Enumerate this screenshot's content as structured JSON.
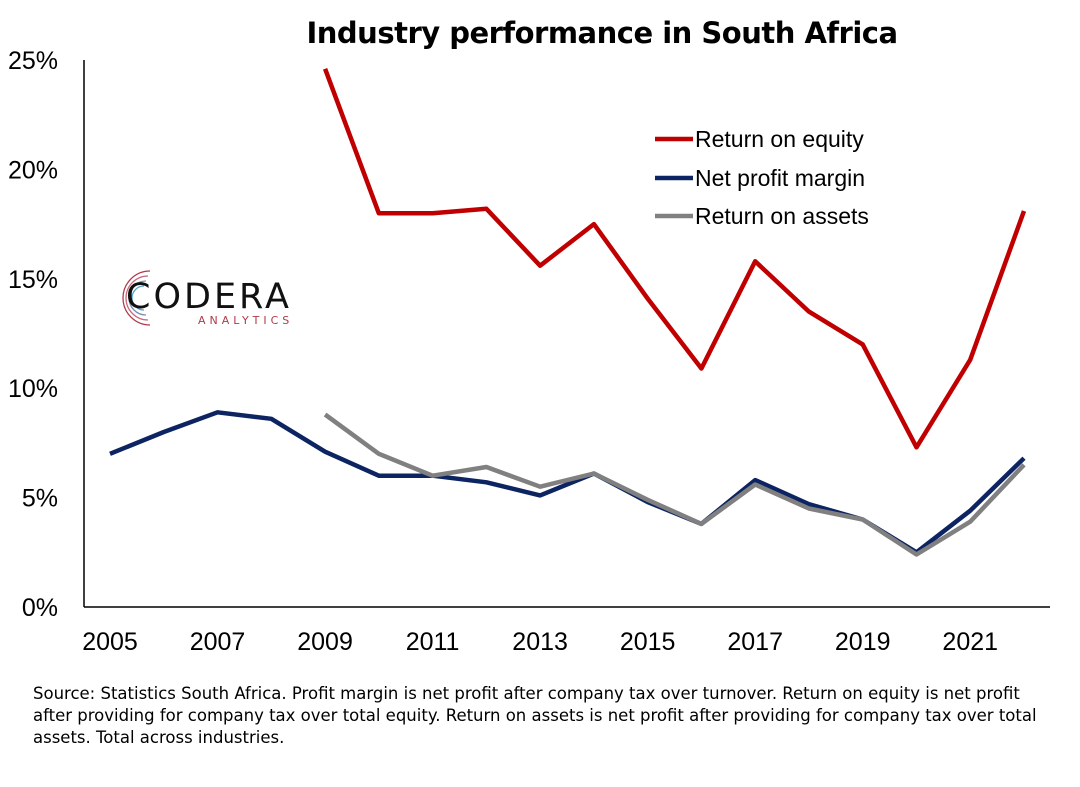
{
  "chart_data": {
    "type": "line",
    "title": "Industry performance in South Africa",
    "x": [
      2005,
      2006,
      2007,
      2008,
      2009,
      2010,
      2011,
      2012,
      2013,
      2014,
      2015,
      2016,
      2017,
      2018,
      2019,
      2020,
      2021,
      2022
    ],
    "x_tick_labels": [
      "2005",
      "2007",
      "2009",
      "2011",
      "2013",
      "2015",
      "2017",
      "2019",
      "2021"
    ],
    "y_tick_labels": [
      "0%",
      "5%",
      "10%",
      "15%",
      "20%",
      "25%"
    ],
    "ylim": [
      0,
      25
    ],
    "grid": false,
    "legend_position": "top-right",
    "series": [
      {
        "name": "Return on equity",
        "color": "#c00000",
        "values": [
          null,
          null,
          null,
          null,
          24.6,
          18.0,
          18.0,
          18.2,
          15.6,
          17.5,
          14.1,
          10.9,
          15.8,
          13.5,
          12.0,
          7.3,
          11.3,
          18.1
        ]
      },
      {
        "name": "Net profit margin",
        "color": "#0d2463",
        "values": [
          7.0,
          8.0,
          8.9,
          8.6,
          7.1,
          6.0,
          6.0,
          5.7,
          5.1,
          6.1,
          4.8,
          3.8,
          5.8,
          4.7,
          4.0,
          2.5,
          4.4,
          6.8
        ]
      },
      {
        "name": "Return on assets",
        "color": "#808080",
        "values": [
          null,
          null,
          null,
          null,
          8.8,
          7.0,
          6.0,
          6.4,
          5.5,
          6.1,
          4.9,
          3.8,
          5.6,
          4.5,
          4.0,
          2.4,
          3.9,
          6.5
        ]
      }
    ]
  },
  "logo": {
    "word": "CODERA",
    "sub": "ANALYTICS"
  },
  "source_note": "Source: Statistics South Africa. Profit margin is net profit after company tax over turnover. Return on equity is net profit after providing for company tax over total equity. Return on assets is net profit after providing for company tax over total assets. Total across industries."
}
